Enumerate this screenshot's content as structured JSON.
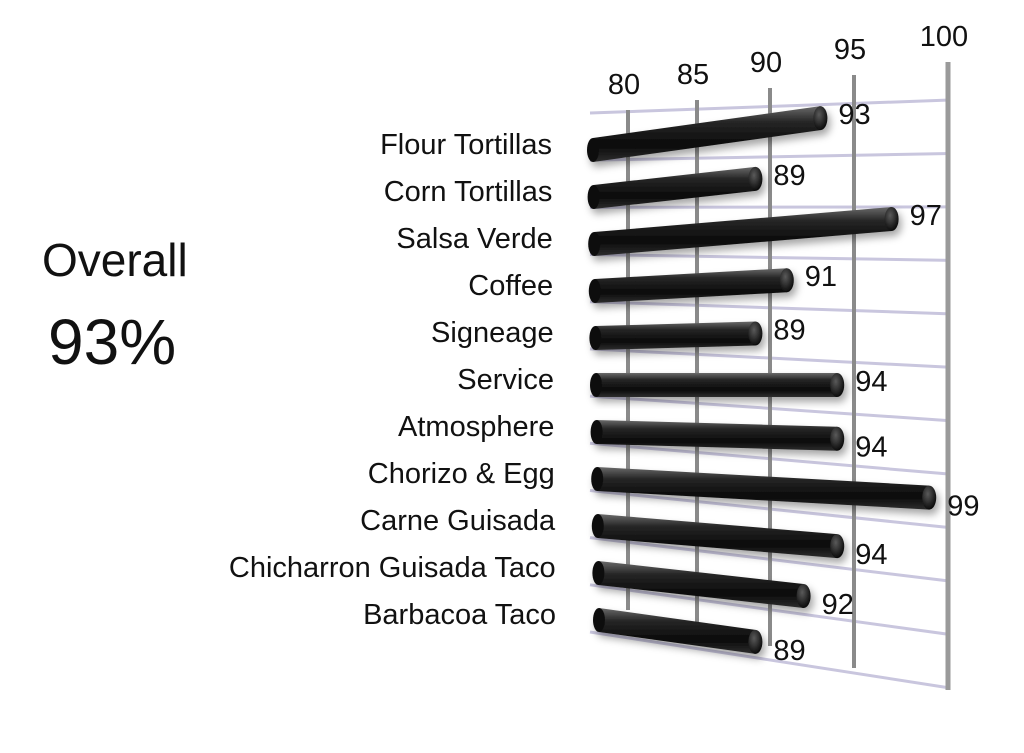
{
  "overall": {
    "label": "Overall",
    "value": "93%"
  },
  "chart_data": {
    "type": "bar",
    "orientation": "horizontal",
    "perspective": "3d",
    "categories": [
      "Flour Tortillas",
      "Corn Tortillas",
      "Salsa Verde",
      "Coffee",
      "Signeage",
      "Service",
      "Atmosphere",
      "Chorizo & Egg",
      "Carne Guisada",
      "Chicharron Guisada Taco",
      "Barbacoa Taco"
    ],
    "values": [
      93,
      89,
      97,
      91,
      89,
      94,
      94,
      99,
      94,
      92,
      89
    ],
    "xlim": [
      78,
      100
    ],
    "xticks": [
      80,
      85,
      90,
      95,
      100
    ],
    "xtick_labels": [
      "80",
      "85",
      "90",
      "95",
      "100"
    ],
    "grid": true,
    "colors": {
      "bar": "#111111",
      "grid": "#c9c6de",
      "axis": "#8a8a8a"
    }
  }
}
